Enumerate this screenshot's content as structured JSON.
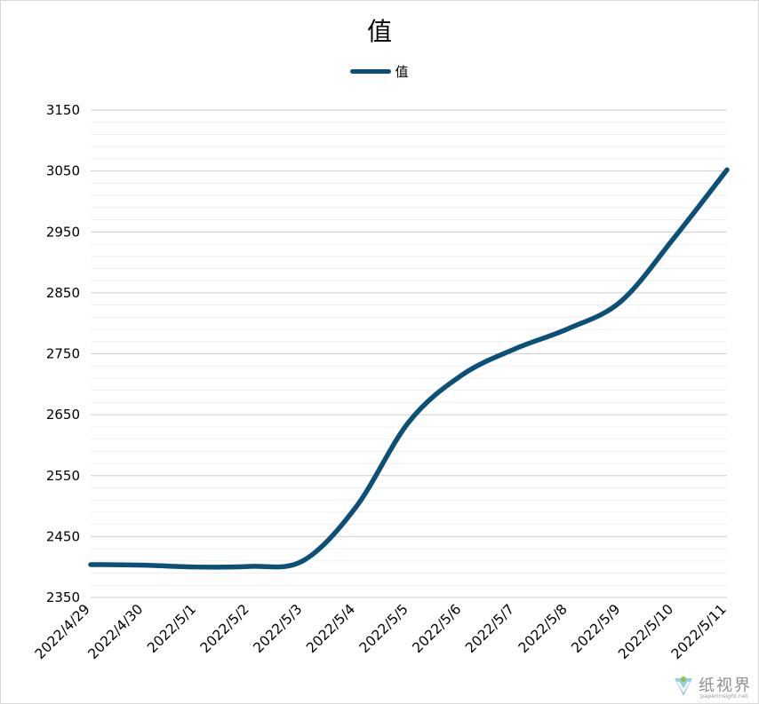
{
  "chart_data": {
    "type": "line",
    "title": "值",
    "xlabel": "",
    "ylabel": "",
    "categories": [
      "2022/4/29",
      "2022/4/30",
      "2022/5/1",
      "2022/5/2",
      "2022/5/3",
      "2022/5/4",
      "2022/5/5",
      "2022/5/6",
      "2022/5/7",
      "2022/5/8",
      "2022/5/9",
      "2022/5/10",
      "2022/5/11"
    ],
    "series": [
      {
        "name": "值",
        "values": [
          2404,
          2403,
          2400,
          2401,
          2410,
          2498,
          2638,
          2715,
          2758,
          2791,
          2836,
          2940,
          3052
        ],
        "color": "#0b5078"
      }
    ],
    "ylim": [
      2350,
      3150
    ],
    "yticks": [
      2350,
      2450,
      2550,
      2650,
      2750,
      2850,
      2950,
      3050,
      3150
    ],
    "minor_gridline_step": 20,
    "grid": true,
    "smooth": true,
    "legend_position": "top-center"
  },
  "watermark": {
    "text": "纸视界",
    "subtext": "paperinsight.net",
    "icon": "logo-icon"
  }
}
